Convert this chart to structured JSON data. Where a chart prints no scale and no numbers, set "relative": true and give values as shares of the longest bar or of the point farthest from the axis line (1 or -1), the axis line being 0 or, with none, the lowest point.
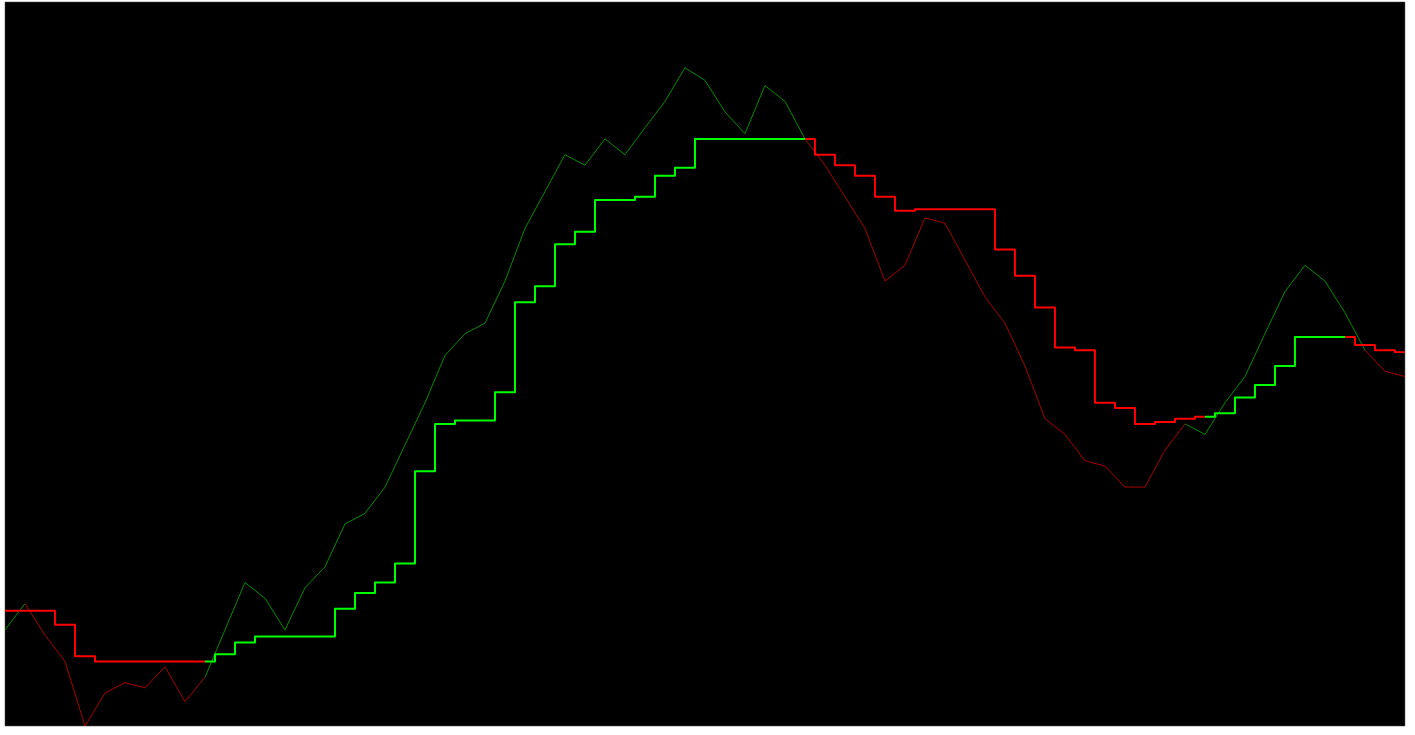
{
  "chart_data": {
    "type": "line",
    "relative": true,
    "categories": [
      null,
      null,
      null,
      null,
      null,
      null,
      null,
      null,
      null,
      null,
      null,
      null,
      null,
      null,
      null,
      null,
      null,
      null,
      null,
      null,
      null,
      null,
      null,
      null,
      null,
      null,
      null,
      null,
      null,
      null,
      null,
      null,
      null,
      null,
      null,
      null,
      null,
      null,
      null,
      null,
      null,
      null,
      null,
      null,
      null,
      null,
      null,
      null,
      null,
      null,
      null,
      null,
      null,
      null,
      null,
      null,
      null,
      null,
      null,
      null,
      null,
      null,
      null,
      null,
      null,
      null,
      null,
      null,
      null,
      null,
      null
    ],
    "series": [
      {
        "color": "#00b000",
        "values": [
          0.146,
          0.186,
          null,
          null,
          null,
          null,
          null,
          null,
          null,
          null,
          null,
          null,
          null,
          null,
          null,
          null,
          null,
          null,
          null,
          null,
          null,
          null,
          null,
          null,
          null,
          null,
          null,
          null,
          null,
          null,
          null,
          null,
          null,
          null,
          null,
          null,
          null,
          null,
          null,
          null,
          null,
          null,
          null,
          null,
          null,
          null,
          null,
          null,
          null,
          null,
          null,
          null,
          null,
          null,
          null,
          null,
          null,
          null,
          null,
          null,
          null,
          null,
          null,
          null,
          null,
          null,
          null,
          null,
          null,
          null,
          null
        ]
      },
      {
        "color": "#d00000",
        "values": [
          null,
          0.186,
          0.138,
          0.098,
          0,
          0.05,
          0.066,
          0.058,
          0.09,
          0.037,
          0.074,
          null,
          null,
          null,
          null,
          null,
          null,
          null,
          null,
          null,
          null,
          null,
          null,
          null,
          null,
          null,
          null,
          null,
          null,
          null,
          null,
          null,
          null,
          null,
          null,
          null,
          null,
          null,
          null,
          null,
          null,
          null,
          null,
          null,
          null,
          null,
          null,
          null,
          null,
          null,
          null,
          null,
          null,
          null,
          null,
          null,
          null,
          null,
          null,
          null,
          null,
          null,
          null,
          null,
          null,
          null,
          null,
          null,
          null,
          null,
          null
        ]
      },
      {
        "color": "#00b000",
        "values": [
          null,
          null,
          null,
          null,
          null,
          null,
          null,
          null,
          null,
          null,
          0.074,
          0.146,
          0.218,
          0.194,
          0.146,
          0.21,
          0.242,
          0.307,
          0.323,
          0.363,
          0.427,
          0.491,
          0.563,
          0.596,
          0.612,
          0.676,
          0.756,
          0.812,
          0.868,
          0.852,
          0.892,
          0.868,
          0.909,
          0.949,
          1,
          0.981,
          0.933,
          0.9,
          0.973,
          0.949,
          0.892,
          null,
          null,
          null,
          null,
          null,
          null,
          null,
          null,
          null,
          null,
          null,
          null,
          null,
          null,
          null,
          null,
          null,
          null,
          null,
          null,
          null,
          null,
          null,
          null,
          null,
          null,
          null,
          null,
          null,
          null
        ]
      },
      {
        "color": "#d00000",
        "values": [
          null,
          null,
          null,
          null,
          null,
          null,
          null,
          null,
          null,
          null,
          null,
          null,
          null,
          null,
          null,
          null,
          null,
          null,
          null,
          null,
          null,
          null,
          null,
          null,
          null,
          null,
          null,
          null,
          null,
          null,
          null,
          null,
          null,
          null,
          null,
          null,
          null,
          null,
          null,
          null,
          0.892,
          0.852,
          0.804,
          0.756,
          0.676,
          0.7,
          0.772,
          0.764,
          0.708,
          0.652,
          0.612,
          0.547,
          0.467,
          0.443,
          0.403,
          0.395,
          0.363,
          0.363,
          0.419,
          0.459,
          null,
          null,
          null,
          null,
          null,
          null,
          null,
          null,
          null,
          null,
          null
        ]
      },
      {
        "color": "#00b000",
        "values": [
          null,
          null,
          null,
          null,
          null,
          null,
          null,
          null,
          null,
          null,
          null,
          null,
          null,
          null,
          null,
          null,
          null,
          null,
          null,
          null,
          null,
          null,
          null,
          null,
          null,
          null,
          null,
          null,
          null,
          null,
          null,
          null,
          null,
          null,
          null,
          null,
          null,
          null,
          null,
          null,
          null,
          null,
          null,
          null,
          null,
          null,
          null,
          null,
          null,
          null,
          null,
          null,
          null,
          null,
          null,
          null,
          null,
          null,
          null,
          0.459,
          0.443,
          0.491,
          0.531,
          0.596,
          0.66,
          0.7,
          0.676,
          0.628,
          0.571,
          null,
          null
        ]
      },
      {
        "color": "#d00000",
        "values": [
          null,
          null,
          null,
          null,
          null,
          null,
          null,
          null,
          null,
          null,
          null,
          null,
          null,
          null,
          null,
          null,
          null,
          null,
          null,
          null,
          null,
          null,
          null,
          null,
          null,
          null,
          null,
          null,
          null,
          null,
          null,
          null,
          null,
          null,
          null,
          null,
          null,
          null,
          null,
          null,
          null,
          null,
          null,
          null,
          null,
          null,
          null,
          null,
          null,
          null,
          null,
          null,
          null,
          null,
          null,
          null,
          null,
          null,
          null,
          null,
          null,
          null,
          null,
          null,
          null,
          null,
          null,
          null,
          0.571,
          0.539,
          0.531
        ]
      },
      {
        "type": "step",
        "color": "#ff0000",
        "values": [
          0.175,
          0.175,
          0.175,
          0.154,
          0.106,
          0.098,
          0.098,
          0.098,
          0.098,
          0.098,
          0.098,
          null,
          null,
          null,
          null,
          null,
          null,
          null,
          null,
          null,
          null,
          null,
          null,
          null,
          null,
          null,
          null,
          null,
          null,
          null,
          null,
          null,
          null,
          null,
          null,
          null,
          null,
          null,
          null,
          null,
          null,
          null,
          null,
          null,
          null,
          null,
          null,
          null,
          null,
          null,
          null,
          null,
          null,
          null,
          null,
          null,
          null,
          null,
          null,
          null,
          null,
          null,
          null,
          null,
          null,
          null,
          null,
          null,
          null,
          null,
          null
        ]
      },
      {
        "type": "step",
        "color": "#00ff00",
        "values": [
          null,
          null,
          null,
          null,
          null,
          null,
          null,
          null,
          null,
          null,
          0.098,
          0.109,
          0.127,
          0.136,
          0.136,
          0.136,
          0.136,
          0.178,
          0.202,
          0.218,
          0.247,
          0.387,
          0.459,
          0.464,
          0.464,
          0.507,
          0.644,
          0.668,
          0.732,
          0.751,
          0.799,
          0.799,
          0.804,
          0.836,
          0.848,
          0.892,
          0.892,
          0.892,
          0.892,
          0.892,
          0.892,
          null,
          null,
          null,
          null,
          null,
          null,
          null,
          null,
          null,
          null,
          null,
          null,
          null,
          null,
          null,
          null,
          null,
          null,
          null,
          null,
          null,
          null,
          null,
          null,
          null,
          null,
          null,
          null,
          null,
          null
        ]
      },
      {
        "type": "step",
        "color": "#ff0000",
        "values": [
          null,
          null,
          null,
          null,
          null,
          null,
          null,
          null,
          null,
          null,
          null,
          null,
          null,
          null,
          null,
          null,
          null,
          null,
          null,
          null,
          null,
          null,
          null,
          null,
          null,
          null,
          null,
          null,
          null,
          null,
          null,
          null,
          null,
          null,
          null,
          null,
          null,
          null,
          null,
          null,
          0.892,
          0.868,
          0.852,
          0.836,
          0.804,
          0.783,
          0.785,
          0.785,
          0.785,
          0.785,
          0.724,
          0.684,
          0.636,
          0.575,
          0.571,
          0.491,
          0.483,
          0.459,
          0.462,
          0.467,
          0.47,
          null,
          null,
          null,
          null,
          null,
          null,
          null,
          null,
          null,
          null
        ]
      },
      {
        "type": "step",
        "color": "#00ff00",
        "values": [
          null,
          null,
          null,
          null,
          null,
          null,
          null,
          null,
          null,
          null,
          null,
          null,
          null,
          null,
          null,
          null,
          null,
          null,
          null,
          null,
          null,
          null,
          null,
          null,
          null,
          null,
          null,
          null,
          null,
          null,
          null,
          null,
          null,
          null,
          null,
          null,
          null,
          null,
          null,
          null,
          null,
          null,
          null,
          null,
          null,
          null,
          null,
          null,
          null,
          null,
          null,
          null,
          null,
          null,
          null,
          null,
          null,
          null,
          null,
          null,
          0.47,
          0.475,
          0.499,
          0.518,
          0.547,
          0.591,
          0.591,
          0.591,
          null,
          null,
          null
        ]
      },
      {
        "type": "step",
        "color": "#ff0000",
        "values": [
          null,
          null,
          null,
          null,
          null,
          null,
          null,
          null,
          null,
          null,
          null,
          null,
          null,
          null,
          null,
          null,
          null,
          null,
          null,
          null,
          null,
          null,
          null,
          null,
          null,
          null,
          null,
          null,
          null,
          null,
          null,
          null,
          null,
          null,
          null,
          null,
          null,
          null,
          null,
          null,
          null,
          null,
          null,
          null,
          null,
          null,
          null,
          null,
          null,
          null,
          null,
          null,
          null,
          null,
          null,
          null,
          null,
          null,
          null,
          null,
          null,
          null,
          null,
          null,
          null,
          null,
          null,
          0.591,
          0.579,
          0.571,
          0.568
        ]
      }
    ]
  }
}
